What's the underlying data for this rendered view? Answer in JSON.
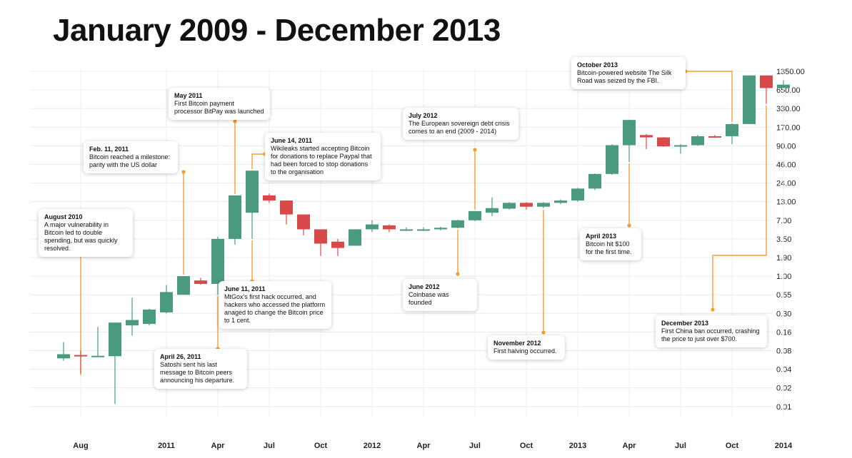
{
  "chart_data": {
    "type": "candlestick",
    "title": "January 2009 - December 2013",
    "y_scale": "log",
    "y_ticks": [
      "1350.00",
      "650.00",
      "330.00",
      "170.00",
      "90.00",
      "46.00",
      "24.00",
      "13.00",
      "7.00",
      "3.50",
      "1.90",
      "1.00",
      "0.55",
      "0.30",
      "0.16",
      "0.08",
      "0.04",
      "0.02",
      "0.01"
    ],
    "x_ticks": [
      "Aug",
      "2011",
      "Apr",
      "Jul",
      "Oct",
      "2012",
      "Apr",
      "Jul",
      "Oct",
      "2013",
      "Apr",
      "Jul",
      "Oct",
      "2014"
    ],
    "colors": {
      "up": "#4a9a7e",
      "down": "#d84a4a",
      "annotation": "#f0a030",
      "grid": "#ececec",
      "axis_text": "#222222"
    },
    "candles": [
      {
        "month": "2010-07",
        "open": 0.06,
        "close": 0.07,
        "high": 0.11,
        "low": 0.055
      },
      {
        "month": "2010-08",
        "open": 0.068,
        "close": 0.065,
        "high": 0.08,
        "low": 0.034
      },
      {
        "month": "2010-09",
        "open": 0.065,
        "close": 0.066,
        "high": 0.19,
        "low": 0.064
      },
      {
        "month": "2010-10",
        "open": 0.065,
        "close": 0.22,
        "high": 0.22,
        "low": 0.011
      },
      {
        "month": "2010-11",
        "open": 0.2,
        "close": 0.24,
        "high": 0.5,
        "low": 0.14
      },
      {
        "month": "2010-12",
        "open": 0.21,
        "close": 0.34,
        "high": 0.35,
        "low": 0.2
      },
      {
        "month": "2011-01",
        "open": 0.31,
        "close": 0.6,
        "high": 0.75,
        "low": 0.3
      },
      {
        "month": "2011-02",
        "open": 0.55,
        "close": 1.0,
        "high": 1.0,
        "low": 0.55
      },
      {
        "month": "2011-03",
        "open": 0.87,
        "close": 0.78,
        "high": 0.95,
        "low": 0.76
      },
      {
        "month": "2011-04",
        "open": 0.78,
        "close": 3.5,
        "high": 3.8,
        "low": 0.55
      },
      {
        "month": "2011-05",
        "open": 3.5,
        "close": 16.0,
        "high": 16.0,
        "low": 2.9
      },
      {
        "month": "2011-06",
        "open": 9.0,
        "close": 37.0,
        "high": 37.0,
        "low": 3.5
      },
      {
        "month": "2011-07",
        "open": 16.0,
        "close": 13.5,
        "high": 17.0,
        "low": 12.5
      },
      {
        "month": "2011-08",
        "open": 13.5,
        "close": 8.5,
        "high": 13.5,
        "low": 6.0
      },
      {
        "month": "2011-09",
        "open": 8.5,
        "close": 5.0,
        "high": 8.5,
        "low": 4.0
      },
      {
        "month": "2011-10",
        "open": 5.0,
        "close": 3.0,
        "high": 5.0,
        "low": 2.0
      },
      {
        "month": "2011-11",
        "open": 3.2,
        "close": 2.6,
        "high": 3.5,
        "low": 2.0
      },
      {
        "month": "2011-12",
        "open": 2.8,
        "close": 5.0,
        "high": 5.0,
        "low": 2.8
      },
      {
        "month": "2012-01",
        "open": 5.0,
        "close": 6.0,
        "high": 7.0,
        "low": 4.5
      },
      {
        "month": "2012-02",
        "open": 5.8,
        "close": 5.0,
        "high": 6.0,
        "low": 4.5
      },
      {
        "month": "2012-03",
        "open": 4.9,
        "close": 5.0,
        "high": 5.4,
        "low": 4.7
      },
      {
        "month": "2012-04",
        "open": 4.9,
        "close": 5.0,
        "high": 5.4,
        "low": 4.7
      },
      {
        "month": "2012-05",
        "open": 5.0,
        "close": 5.3,
        "high": 5.5,
        "low": 4.8
      },
      {
        "month": "2012-06",
        "open": 5.3,
        "close": 7.0,
        "high": 7.1,
        "low": 5.2
      },
      {
        "month": "2012-07",
        "open": 7.0,
        "close": 9.5,
        "high": 9.5,
        "low": 6.8
      },
      {
        "month": "2012-08",
        "open": 9.0,
        "close": 10.5,
        "high": 15.0,
        "low": 8.0
      },
      {
        "month": "2012-09",
        "open": 10.3,
        "close": 12.5,
        "high": 12.8,
        "low": 10.0
      },
      {
        "month": "2012-10",
        "open": 12.5,
        "close": 11.0,
        "high": 12.8,
        "low": 10.0
      },
      {
        "month": "2012-11",
        "open": 11.0,
        "close": 12.5,
        "high": 12.8,
        "low": 10.5
      },
      {
        "month": "2012-12",
        "open": 12.5,
        "close": 13.5,
        "high": 14.0,
        "low": 12.0
      },
      {
        "month": "2013-01",
        "open": 13.5,
        "close": 20.0,
        "high": 20.5,
        "low": 13.0
      },
      {
        "month": "2013-02",
        "open": 20.0,
        "close": 33.0,
        "high": 33.5,
        "low": 19.0
      },
      {
        "month": "2013-03",
        "open": 33.0,
        "close": 92.0,
        "high": 95.0,
        "low": 32.0
      },
      {
        "month": "2013-04",
        "open": 92.0,
        "close": 220.0,
        "high": 220.0,
        "low": 50.0
      },
      {
        "month": "2013-05",
        "open": 130.0,
        "close": 120.0,
        "high": 135.0,
        "low": 80.0
      },
      {
        "month": "2013-06",
        "open": 120.0,
        "close": 88.0,
        "high": 121.0,
        "low": 87.0
      },
      {
        "month": "2013-07",
        "open": 88.0,
        "close": 92.0,
        "high": 95.0,
        "low": 68.0
      },
      {
        "month": "2013-08",
        "open": 92.0,
        "close": 125.0,
        "high": 130.0,
        "low": 90.0
      },
      {
        "month": "2013-09",
        "open": 125.0,
        "close": 120.0,
        "high": 130.0,
        "low": 118.0
      },
      {
        "month": "2013-10",
        "open": 125.0,
        "close": 190.0,
        "high": 195.0,
        "low": 95.0
      },
      {
        "month": "2013-11",
        "open": 190.0,
        "close": 1150.0,
        "high": 1150.0,
        "low": 190.0
      },
      {
        "month": "2013-12",
        "open": 1150.0,
        "close": 700.0,
        "high": 1150.0,
        "low": 390.0
      },
      {
        "month": "2014-01",
        "open": 700.0,
        "close": 800.0,
        "high": 950.0,
        "low": 700.0
      }
    ],
    "annotations": [
      {
        "id": "aug-2010",
        "date": "August 2010",
        "text": "A major vulnerability in Bitcoin led to double spending, but was quickly resolved."
      },
      {
        "id": "feb-2011",
        "date": "Feb. 11, 2011",
        "text": "Bitcoin reached a milestone: parity with the US dollar"
      },
      {
        "id": "apr-2011",
        "date": "April 26, 2011",
        "text": "Satoshi sent his last message to Bitcoin peers announcing his departure."
      },
      {
        "id": "may-2011",
        "date": "May 2011",
        "text": "First Bitcoin payment processor BitPay was launched"
      },
      {
        "id": "jun14-2011",
        "date": "June 14, 2011",
        "text": "Wikileaks started accepting Bitcoin for donations to replace Paypal that had been forced to stop donations to the organisation"
      },
      {
        "id": "jun11-2011",
        "date": "June 11, 2011",
        "text": "MtGox's first hack occurred, and hackers who accessed the platform anaged to change the Bitcoin price to 1 cent."
      },
      {
        "id": "jun-2012",
        "date": "June 2012",
        "text": "Coinbase was founded"
      },
      {
        "id": "jul-2012",
        "date": "July 2012",
        "text": "The European sovereign debt crisis comes to an end (2009 - 2014)"
      },
      {
        "id": "nov-2012",
        "date": "November 2012",
        "text": "First halving occurred."
      },
      {
        "id": "apr-2013",
        "date": "April 2013",
        "text": "Bitcoin hit $100 for the first time."
      },
      {
        "id": "oct-2013",
        "date": "October 2013",
        "text": "Bitcoin-powered website The Silk Road was seized by the FBI."
      },
      {
        "id": "dec-2013",
        "date": "December 2013",
        "text": "First China ban occurred, crashing the price to just over $700."
      }
    ]
  }
}
